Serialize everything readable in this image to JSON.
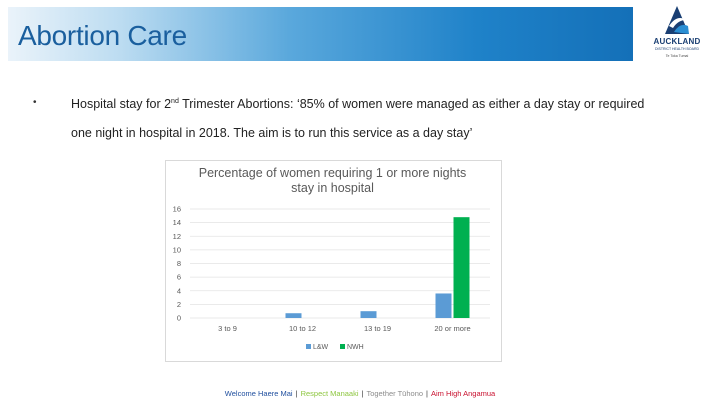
{
  "header": {
    "title": "Abortion Care",
    "band_color": "#1f82c9"
  },
  "logo": {
    "name": "AUCKLAND",
    "line_2": "DISTRICT HEALTH BOARD",
    "tagline": "Te Toka Tumai",
    "icon": "auckland-dhb-logo"
  },
  "bullet": {
    "marker": "•",
    "text_part_1": "Hospital stay for 2",
    "text_sup": "nd",
    "text_part_2": " Trimester Abortions:  ‘85% of women were managed as either a day stay or required one night in hospital in 2018. The aim is to run this service as a day stay’"
  },
  "chart_data": {
    "type": "bar",
    "title": "Percentage of women requiring 1 or more nights stay in hospital",
    "title_line_1": "Percentage of women requiring 1 or more nights",
    "title_line_2": "stay in hospital",
    "categories": [
      "3 to 9",
      "10 to 12",
      "13 to 19",
      "20 or more"
    ],
    "series": [
      {
        "name": "L&W",
        "color": "#5b9bd5",
        "values": [
          0,
          0.7,
          1,
          3.6
        ]
      },
      {
        "name": "NWH",
        "color": "#00b050",
        "values": [
          0,
          0,
          0,
          14.8
        ]
      }
    ],
    "y_ticks": [
      "0",
      "2",
      "4",
      "6",
      "8",
      "10",
      "12",
      "14",
      "16"
    ],
    "ylim": [
      0,
      16
    ],
    "grid": true,
    "legend_position": "bottom",
    "xlabel": "",
    "ylabel": ""
  },
  "footer": {
    "items": [
      {
        "text": "Welcome  Haere Mai",
        "color": "#1f4e9e"
      },
      {
        "text": "Respect  Manaaki",
        "color": "#8dc63f"
      },
      {
        "text": "Together  Tūhono",
        "color": "#8c8c8c"
      },
      {
        "text": "Aim High  Angamua",
        "color": "#c8102e"
      }
    ],
    "separator": "|"
  }
}
